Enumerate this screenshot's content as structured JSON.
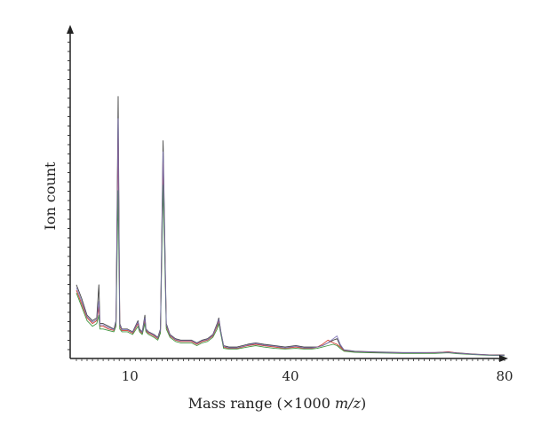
{
  "chart_data": {
    "type": "line",
    "title": "",
    "xlabel": "Mass range (×1000 m/z)",
    "ylabel": "Ion count",
    "xlim": [
      0,
      80
    ],
    "ylim": [
      0,
      1
    ],
    "grid": false,
    "legend": "none",
    "x_ticks": [
      {
        "value": 10,
        "label": "10"
      },
      {
        "value": 40,
        "label": "40"
      },
      {
        "value": 80,
        "label": "80"
      }
    ],
    "series": [
      {
        "color": "#303030",
        "points": [
          [
            0.0,
            0.26
          ],
          [
            1.0,
            0.21
          ],
          [
            2.0,
            0.15
          ],
          [
            2.5,
            0.14
          ],
          [
            3.0,
            0.13
          ],
          [
            3.8,
            0.14
          ],
          [
            4.2,
            0.26
          ],
          [
            4.4,
            0.12
          ],
          [
            5.0,
            0.12
          ],
          [
            6.0,
            0.11
          ],
          [
            7.0,
            0.1
          ],
          [
            7.4,
            0.13
          ],
          [
            7.8,
            0.94
          ],
          [
            8.1,
            0.12
          ],
          [
            8.5,
            0.1
          ],
          [
            9.5,
            0.1
          ],
          [
            10.5,
            0.09
          ],
          [
            11.5,
            0.13
          ],
          [
            11.8,
            0.1
          ],
          [
            12.3,
            0.09
          ],
          [
            12.8,
            0.15
          ],
          [
            13.0,
            0.1
          ],
          [
            13.5,
            0.09
          ],
          [
            14.5,
            0.08
          ],
          [
            15.2,
            0.07
          ],
          [
            15.7,
            0.1
          ],
          [
            16.2,
            0.78
          ],
          [
            16.8,
            0.12
          ],
          [
            17.5,
            0.08
          ],
          [
            18.5,
            0.065
          ],
          [
            19.5,
            0.06
          ],
          [
            20.5,
            0.06
          ],
          [
            21.5,
            0.06
          ],
          [
            22.5,
            0.05
          ],
          [
            23.5,
            0.06
          ],
          [
            24.5,
            0.065
          ],
          [
            25.5,
            0.08
          ],
          [
            26.3,
            0.12
          ],
          [
            26.6,
            0.14
          ],
          [
            27.0,
            0.09
          ],
          [
            27.5,
            0.04
          ],
          [
            28.5,
            0.035
          ],
          [
            30.0,
            0.035
          ],
          [
            32.0,
            0.045
          ],
          [
            33.5,
            0.05
          ],
          [
            35.0,
            0.045
          ],
          [
            37.0,
            0.04
          ],
          [
            39.0,
            0.035
          ],
          [
            41.0,
            0.04
          ],
          [
            42.5,
            0.035
          ],
          [
            44.0,
            0.035
          ],
          [
            45.0,
            0.035
          ],
          [
            46.0,
            0.04
          ],
          [
            47.0,
            0.05
          ],
          [
            48.0,
            0.06
          ],
          [
            48.7,
            0.065
          ],
          [
            49.3,
            0.04
          ],
          [
            50.0,
            0.025
          ],
          [
            52.0,
            0.02
          ],
          [
            55.0,
            0.018
          ],
          [
            58.0,
            0.016
          ],
          [
            61.0,
            0.015
          ],
          [
            64.0,
            0.015
          ],
          [
            67.0,
            0.015
          ],
          [
            69.5,
            0.017
          ],
          [
            71.0,
            0.014
          ],
          [
            74.0,
            0.01
          ],
          [
            77.0,
            0.007
          ],
          [
            80.0,
            0.006
          ]
        ]
      },
      {
        "color": "#cc2a1a",
        "points": [
          [
            0.0,
            0.24
          ],
          [
            1.0,
            0.19
          ],
          [
            2.0,
            0.14
          ],
          [
            2.5,
            0.13
          ],
          [
            3.0,
            0.12
          ],
          [
            3.8,
            0.13
          ],
          [
            4.2,
            0.18
          ],
          [
            4.4,
            0.11
          ],
          [
            5.0,
            0.11
          ],
          [
            6.0,
            0.1
          ],
          [
            7.0,
            0.095
          ],
          [
            7.4,
            0.12
          ],
          [
            7.8,
            0.8
          ],
          [
            8.1,
            0.11
          ],
          [
            8.5,
            0.095
          ],
          [
            9.5,
            0.095
          ],
          [
            10.5,
            0.085
          ],
          [
            11.5,
            0.12
          ],
          [
            11.8,
            0.095
          ],
          [
            12.3,
            0.085
          ],
          [
            12.8,
            0.13
          ],
          [
            13.0,
            0.095
          ],
          [
            13.5,
            0.085
          ],
          [
            14.5,
            0.075
          ],
          [
            15.2,
            0.065
          ],
          [
            15.7,
            0.09
          ],
          [
            16.2,
            0.7
          ],
          [
            16.8,
            0.11
          ],
          [
            17.5,
            0.075
          ],
          [
            18.5,
            0.06
          ],
          [
            19.5,
            0.055
          ],
          [
            20.5,
            0.055
          ],
          [
            21.5,
            0.055
          ],
          [
            22.5,
            0.045
          ],
          [
            23.5,
            0.055
          ],
          [
            24.5,
            0.06
          ],
          [
            25.5,
            0.075
          ],
          [
            26.3,
            0.11
          ],
          [
            26.6,
            0.13
          ],
          [
            27.0,
            0.085
          ],
          [
            27.5,
            0.035
          ],
          [
            28.5,
            0.03
          ],
          [
            30.0,
            0.03
          ],
          [
            32.0,
            0.04
          ],
          [
            33.5,
            0.045
          ],
          [
            35.0,
            0.04
          ],
          [
            37.0,
            0.035
          ],
          [
            39.0,
            0.03
          ],
          [
            41.0,
            0.035
          ],
          [
            42.5,
            0.03
          ],
          [
            44.0,
            0.03
          ],
          [
            45.0,
            0.035
          ],
          [
            46.0,
            0.045
          ],
          [
            47.0,
            0.06
          ],
          [
            48.0,
            0.05
          ],
          [
            48.7,
            0.045
          ],
          [
            49.3,
            0.035
          ],
          [
            50.0,
            0.022
          ],
          [
            52.0,
            0.018
          ],
          [
            55.0,
            0.016
          ],
          [
            58.0,
            0.014
          ],
          [
            61.0,
            0.013
          ],
          [
            64.0,
            0.013
          ],
          [
            67.0,
            0.014
          ],
          [
            69.5,
            0.018
          ],
          [
            71.0,
            0.013
          ],
          [
            74.0,
            0.009
          ],
          [
            77.0,
            0.006
          ],
          [
            80.0,
            0.005
          ]
        ]
      },
      {
        "color": "#2c8a2c",
        "points": [
          [
            0.0,
            0.23
          ],
          [
            1.0,
            0.18
          ],
          [
            2.0,
            0.13
          ],
          [
            2.5,
            0.12
          ],
          [
            3.0,
            0.11
          ],
          [
            3.8,
            0.12
          ],
          [
            4.2,
            0.15
          ],
          [
            4.4,
            0.1
          ],
          [
            5.0,
            0.1
          ],
          [
            6.0,
            0.095
          ],
          [
            7.0,
            0.09
          ],
          [
            7.4,
            0.11
          ],
          [
            7.8,
            0.6
          ],
          [
            8.1,
            0.1
          ],
          [
            8.5,
            0.09
          ],
          [
            9.5,
            0.09
          ],
          [
            10.5,
            0.08
          ],
          [
            11.5,
            0.11
          ],
          [
            11.8,
            0.09
          ],
          [
            12.3,
            0.08
          ],
          [
            12.8,
            0.12
          ],
          [
            13.0,
            0.09
          ],
          [
            13.5,
            0.08
          ],
          [
            14.5,
            0.07
          ],
          [
            15.2,
            0.06
          ],
          [
            15.7,
            0.085
          ],
          [
            16.2,
            0.62
          ],
          [
            16.8,
            0.1
          ],
          [
            17.5,
            0.07
          ],
          [
            18.5,
            0.055
          ],
          [
            19.5,
            0.05
          ],
          [
            20.5,
            0.05
          ],
          [
            21.5,
            0.05
          ],
          [
            22.5,
            0.04
          ],
          [
            23.5,
            0.05
          ],
          [
            24.5,
            0.055
          ],
          [
            25.5,
            0.07
          ],
          [
            26.3,
            0.1
          ],
          [
            26.6,
            0.12
          ],
          [
            27.0,
            0.08
          ],
          [
            27.5,
            0.03
          ],
          [
            28.5,
            0.028
          ],
          [
            30.0,
            0.028
          ],
          [
            32.0,
            0.035
          ],
          [
            33.5,
            0.04
          ],
          [
            35.0,
            0.035
          ],
          [
            37.0,
            0.03
          ],
          [
            39.0,
            0.028
          ],
          [
            41.0,
            0.03
          ],
          [
            42.5,
            0.028
          ],
          [
            44.0,
            0.028
          ],
          [
            45.0,
            0.03
          ],
          [
            46.0,
            0.035
          ],
          [
            47.0,
            0.04
          ],
          [
            48.0,
            0.045
          ],
          [
            48.7,
            0.04
          ],
          [
            49.3,
            0.03
          ],
          [
            50.0,
            0.02
          ],
          [
            52.0,
            0.016
          ],
          [
            55.0,
            0.014
          ],
          [
            58.0,
            0.013
          ],
          [
            61.0,
            0.012
          ],
          [
            64.0,
            0.012
          ],
          [
            67.0,
            0.012
          ],
          [
            69.5,
            0.014
          ],
          [
            71.0,
            0.011
          ],
          [
            74.0,
            0.008
          ],
          [
            77.0,
            0.005
          ],
          [
            80.0,
            0.004
          ]
        ]
      },
      {
        "color": "#7a6fb4",
        "points": [
          [
            0.0,
            0.25
          ],
          [
            1.0,
            0.2
          ],
          [
            2.0,
            0.145
          ],
          [
            2.5,
            0.135
          ],
          [
            3.0,
            0.125
          ],
          [
            3.8,
            0.135
          ],
          [
            4.2,
            0.2
          ],
          [
            4.4,
            0.115
          ],
          [
            5.0,
            0.115
          ],
          [
            6.0,
            0.105
          ],
          [
            7.0,
            0.098
          ],
          [
            7.4,
            0.125
          ],
          [
            7.8,
            0.86
          ],
          [
            8.1,
            0.115
          ],
          [
            8.5,
            0.098
          ],
          [
            9.5,
            0.098
          ],
          [
            10.5,
            0.088
          ],
          [
            11.5,
            0.125
          ],
          [
            11.8,
            0.098
          ],
          [
            12.3,
            0.088
          ],
          [
            12.8,
            0.14
          ],
          [
            13.0,
            0.098
          ],
          [
            13.5,
            0.088
          ],
          [
            14.5,
            0.078
          ],
          [
            15.2,
            0.068
          ],
          [
            15.7,
            0.095
          ],
          [
            16.2,
            0.74
          ],
          [
            16.8,
            0.115
          ],
          [
            17.5,
            0.078
          ],
          [
            18.5,
            0.062
          ],
          [
            19.5,
            0.058
          ],
          [
            20.5,
            0.058
          ],
          [
            21.5,
            0.058
          ],
          [
            22.5,
            0.048
          ],
          [
            23.5,
            0.058
          ],
          [
            24.5,
            0.062
          ],
          [
            25.5,
            0.078
          ],
          [
            26.3,
            0.115
          ],
          [
            26.6,
            0.135
          ],
          [
            27.0,
            0.088
          ],
          [
            27.5,
            0.038
          ],
          [
            28.5,
            0.032
          ],
          [
            30.0,
            0.032
          ],
          [
            32.0,
            0.042
          ],
          [
            33.5,
            0.048
          ],
          [
            35.0,
            0.042
          ],
          [
            37.0,
            0.038
          ],
          [
            39.0,
            0.032
          ],
          [
            41.0,
            0.038
          ],
          [
            42.5,
            0.032
          ],
          [
            44.0,
            0.032
          ],
          [
            45.0,
            0.035
          ],
          [
            46.0,
            0.04
          ],
          [
            47.0,
            0.05
          ],
          [
            48.0,
            0.065
          ],
          [
            48.7,
            0.075
          ],
          [
            49.3,
            0.045
          ],
          [
            50.0,
            0.024
          ],
          [
            52.0,
            0.019
          ],
          [
            55.0,
            0.017
          ],
          [
            58.0,
            0.015
          ],
          [
            61.0,
            0.014
          ],
          [
            64.0,
            0.014
          ],
          [
            67.0,
            0.015
          ],
          [
            69.5,
            0.016
          ],
          [
            71.0,
            0.013
          ],
          [
            74.0,
            0.009
          ],
          [
            77.0,
            0.006
          ],
          [
            80.0,
            0.005
          ]
        ]
      }
    ]
  }
}
